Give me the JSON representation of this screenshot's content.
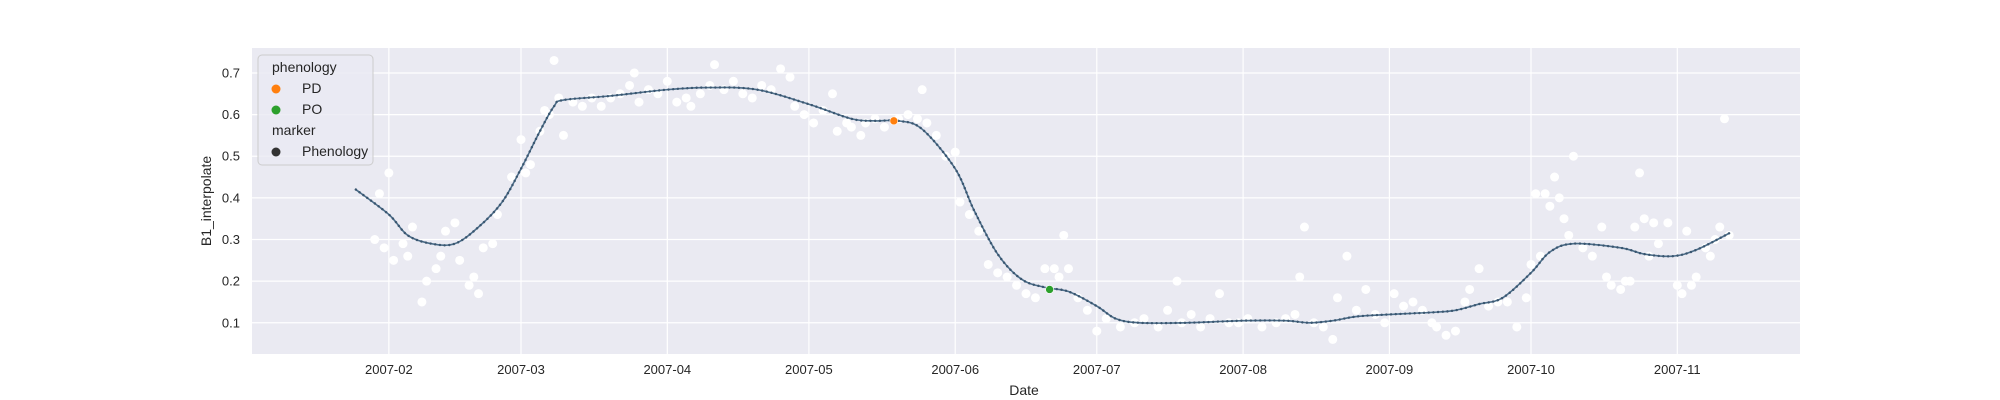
{
  "chart_data": {
    "type": "scatter",
    "title": "",
    "xlabel": "Date",
    "ylabel": "B1_interpolate",
    "xlim": [
      "2007-01-03",
      "2007-11-27"
    ],
    "ylim": [
      0.025,
      0.76
    ],
    "grid": true,
    "legend_position": "top-left",
    "x_ticks": [
      "2007-02",
      "2007-03",
      "2007-04",
      "2007-05",
      "2007-06",
      "2007-07",
      "2007-08",
      "2007-09",
      "2007-10",
      "2007-11"
    ],
    "y_ticks": [
      0.1,
      0.2,
      0.3,
      0.4,
      0.5,
      0.6,
      0.7
    ],
    "y_tick_labels": [
      "0.1",
      "0.2",
      "0.3",
      "0.4",
      "0.5",
      "0.6",
      "0.7"
    ],
    "legend": {
      "title1": "phenology",
      "items1": [
        {
          "label": "PD",
          "color": "#ff7f0e"
        },
        {
          "label": "PO",
          "color": "#2ca02c"
        }
      ],
      "title2": "marker",
      "items2": [
        {
          "label": "Phenology",
          "color": "#333333"
        }
      ]
    },
    "interpolated_curve": {
      "color": "#4c6e8a",
      "dot_color": "#3a5670",
      "points": [
        [
          "2007-01-25",
          0.42
        ],
        [
          "2007-02-01",
          0.36
        ],
        [
          "2007-02-05",
          0.31
        ],
        [
          "2007-02-10",
          0.29
        ],
        [
          "2007-02-15",
          0.29
        ],
        [
          "2007-02-20",
          0.33
        ],
        [
          "2007-02-25",
          0.39
        ],
        [
          "2007-03-01",
          0.47
        ],
        [
          "2007-03-05",
          0.56
        ],
        [
          "2007-03-08",
          0.62
        ],
        [
          "2007-03-10",
          0.635
        ],
        [
          "2007-03-20",
          0.645
        ],
        [
          "2007-04-01",
          0.66
        ],
        [
          "2007-04-10",
          0.665
        ],
        [
          "2007-04-20",
          0.66
        ],
        [
          "2007-05-01",
          0.625
        ],
        [
          "2007-05-10",
          0.59
        ],
        [
          "2007-05-15",
          0.585
        ],
        [
          "2007-05-20",
          0.585
        ],
        [
          "2007-05-25",
          0.565
        ],
        [
          "2007-06-01",
          0.47
        ],
        [
          "2007-06-05",
          0.37
        ],
        [
          "2007-06-10",
          0.265
        ],
        [
          "2007-06-15",
          0.205
        ],
        [
          "2007-06-20",
          0.185
        ],
        [
          "2007-06-25",
          0.175
        ],
        [
          "2007-07-01",
          0.14
        ],
        [
          "2007-07-05",
          0.11
        ],
        [
          "2007-07-10",
          0.1
        ],
        [
          "2007-07-20",
          0.1
        ],
        [
          "2007-08-01",
          0.105
        ],
        [
          "2007-08-10",
          0.105
        ],
        [
          "2007-08-15",
          0.1
        ],
        [
          "2007-08-20",
          0.105
        ],
        [
          "2007-08-25",
          0.115
        ],
        [
          "2007-09-01",
          0.12
        ],
        [
          "2007-09-10",
          0.125
        ],
        [
          "2007-09-15",
          0.13
        ],
        [
          "2007-09-20",
          0.145
        ],
        [
          "2007-09-25",
          0.16
        ],
        [
          "2007-10-01",
          0.22
        ],
        [
          "2007-10-05",
          0.27
        ],
        [
          "2007-10-10",
          0.29
        ],
        [
          "2007-10-20",
          0.28
        ],
        [
          "2007-10-25",
          0.265
        ],
        [
          "2007-10-31",
          0.26
        ],
        [
          "2007-11-05",
          0.275
        ],
        [
          "2007-11-12",
          0.315
        ]
      ]
    },
    "phenology_points": [
      {
        "label": "PD",
        "date": "2007-05-19",
        "value": 0.585,
        "color": "#ff7f0e"
      },
      {
        "label": "PO",
        "date": "2007-06-21",
        "value": 0.18,
        "color": "#2ca02c"
      }
    ],
    "observations": {
      "color": "#ffffff",
      "points": [
        [
          "2007-01-29",
          0.3
        ],
        [
          "2007-01-30",
          0.41
        ],
        [
          "2007-01-31",
          0.28
        ],
        [
          "2007-02-01",
          0.46
        ],
        [
          "2007-02-02",
          0.25
        ],
        [
          "2007-02-04",
          0.29
        ],
        [
          "2007-02-05",
          0.26
        ],
        [
          "2007-02-06",
          0.33
        ],
        [
          "2007-02-08",
          0.15
        ],
        [
          "2007-02-09",
          0.2
        ],
        [
          "2007-02-11",
          0.23
        ],
        [
          "2007-02-12",
          0.26
        ],
        [
          "2007-02-13",
          0.32
        ],
        [
          "2007-02-15",
          0.34
        ],
        [
          "2007-02-16",
          0.25
        ],
        [
          "2007-02-18",
          0.19
        ],
        [
          "2007-02-19",
          0.21
        ],
        [
          "2007-02-20",
          0.17
        ],
        [
          "2007-02-21",
          0.28
        ],
        [
          "2007-02-23",
          0.29
        ],
        [
          "2007-02-24",
          0.36
        ],
        [
          "2007-02-27",
          0.45
        ],
        [
          "2007-03-01",
          0.54
        ],
        [
          "2007-03-02",
          0.46
        ],
        [
          "2007-03-03",
          0.48
        ],
        [
          "2007-03-05",
          0.56
        ],
        [
          "2007-03-06",
          0.61
        ],
        [
          "2007-03-07",
          0.6
        ],
        [
          "2007-03-08",
          0.73
        ],
        [
          "2007-03-09",
          0.64
        ],
        [
          "2007-03-10",
          0.55
        ],
        [
          "2007-03-12",
          0.63
        ],
        [
          "2007-03-14",
          0.62
        ],
        [
          "2007-03-16",
          0.64
        ],
        [
          "2007-03-18",
          0.62
        ],
        [
          "2007-03-20",
          0.64
        ],
        [
          "2007-03-22",
          0.65
        ],
        [
          "2007-03-24",
          0.67
        ],
        [
          "2007-03-25",
          0.7
        ],
        [
          "2007-03-26",
          0.63
        ],
        [
          "2007-03-28",
          0.66
        ],
        [
          "2007-03-30",
          0.65
        ],
        [
          "2007-04-01",
          0.68
        ],
        [
          "2007-04-03",
          0.63
        ],
        [
          "2007-04-05",
          0.64
        ],
        [
          "2007-04-06",
          0.62
        ],
        [
          "2007-04-08",
          0.65
        ],
        [
          "2007-04-10",
          0.67
        ],
        [
          "2007-04-11",
          0.72
        ],
        [
          "2007-04-13",
          0.66
        ],
        [
          "2007-04-15",
          0.68
        ],
        [
          "2007-04-17",
          0.65
        ],
        [
          "2007-04-19",
          0.64
        ],
        [
          "2007-04-21",
          0.67
        ],
        [
          "2007-04-23",
          0.66
        ],
        [
          "2007-04-25",
          0.71
        ],
        [
          "2007-04-27",
          0.69
        ],
        [
          "2007-04-28",
          0.62
        ],
        [
          "2007-04-30",
          0.6
        ],
        [
          "2007-05-02",
          0.58
        ],
        [
          "2007-05-04",
          0.61
        ],
        [
          "2007-05-06",
          0.65
        ],
        [
          "2007-05-07",
          0.56
        ],
        [
          "2007-05-09",
          0.58
        ],
        [
          "2007-05-10",
          0.57
        ],
        [
          "2007-05-12",
          0.55
        ],
        [
          "2007-05-13",
          0.58
        ],
        [
          "2007-05-15",
          0.59
        ],
        [
          "2007-05-17",
          0.57
        ],
        [
          "2007-05-20",
          0.59
        ],
        [
          "2007-05-22",
          0.6
        ],
        [
          "2007-05-24",
          0.59
        ],
        [
          "2007-05-25",
          0.66
        ],
        [
          "2007-05-26",
          0.58
        ],
        [
          "2007-05-28",
          0.55
        ],
        [
          "2007-05-30",
          0.5
        ],
        [
          "2007-06-01",
          0.51
        ],
        [
          "2007-06-02",
          0.39
        ],
        [
          "2007-06-04",
          0.36
        ],
        [
          "2007-06-06",
          0.32
        ],
        [
          "2007-06-08",
          0.24
        ],
        [
          "2007-06-10",
          0.22
        ],
        [
          "2007-06-12",
          0.21
        ],
        [
          "2007-06-14",
          0.19
        ],
        [
          "2007-06-16",
          0.17
        ],
        [
          "2007-06-18",
          0.16
        ],
        [
          "2007-06-20",
          0.23
        ],
        [
          "2007-06-22",
          0.23
        ],
        [
          "2007-06-23",
          0.21
        ],
        [
          "2007-06-24",
          0.31
        ],
        [
          "2007-06-25",
          0.23
        ],
        [
          "2007-06-27",
          0.16
        ],
        [
          "2007-06-29",
          0.13
        ],
        [
          "2007-07-01",
          0.08
        ],
        [
          "2007-07-03",
          0.11
        ],
        [
          "2007-07-06",
          0.09
        ],
        [
          "2007-07-09",
          0.1
        ],
        [
          "2007-07-11",
          0.11
        ],
        [
          "2007-07-14",
          0.09
        ],
        [
          "2007-07-16",
          0.13
        ],
        [
          "2007-07-18",
          0.2
        ],
        [
          "2007-07-19",
          0.1
        ],
        [
          "2007-07-21",
          0.12
        ],
        [
          "2007-07-23",
          0.09
        ],
        [
          "2007-07-25",
          0.11
        ],
        [
          "2007-07-27",
          0.17
        ],
        [
          "2007-07-29",
          0.1
        ],
        [
          "2007-07-31",
          0.1
        ],
        [
          "2007-08-02",
          0.11
        ],
        [
          "2007-08-05",
          0.09
        ],
        [
          "2007-08-08",
          0.1
        ],
        [
          "2007-08-10",
          0.11
        ],
        [
          "2007-08-12",
          0.12
        ],
        [
          "2007-08-13",
          0.21
        ],
        [
          "2007-08-14",
          0.33
        ],
        [
          "2007-08-16",
          0.1
        ],
        [
          "2007-08-18",
          0.09
        ],
        [
          "2007-08-20",
          0.06
        ],
        [
          "2007-08-21",
          0.16
        ],
        [
          "2007-08-23",
          0.26
        ],
        [
          "2007-08-25",
          0.13
        ],
        [
          "2007-08-27",
          0.18
        ],
        [
          "2007-08-29",
          0.12
        ],
        [
          "2007-08-31",
          0.1
        ],
        [
          "2007-09-02",
          0.17
        ],
        [
          "2007-09-04",
          0.14
        ],
        [
          "2007-09-06",
          0.15
        ],
        [
          "2007-09-08",
          0.13
        ],
        [
          "2007-09-10",
          0.1
        ],
        [
          "2007-09-11",
          0.09
        ],
        [
          "2007-09-13",
          0.07
        ],
        [
          "2007-09-15",
          0.08
        ],
        [
          "2007-09-17",
          0.15
        ],
        [
          "2007-09-18",
          0.18
        ],
        [
          "2007-09-20",
          0.23
        ],
        [
          "2007-09-22",
          0.14
        ],
        [
          "2007-09-24",
          0.15
        ],
        [
          "2007-09-26",
          0.15
        ],
        [
          "2007-09-28",
          0.09
        ],
        [
          "2007-09-30",
          0.16
        ],
        [
          "2007-10-01",
          0.24
        ],
        [
          "2007-10-02",
          0.41
        ],
        [
          "2007-10-03",
          0.26
        ],
        [
          "2007-10-04",
          0.41
        ],
        [
          "2007-10-05",
          0.38
        ],
        [
          "2007-10-06",
          0.45
        ],
        [
          "2007-10-07",
          0.4
        ],
        [
          "2007-10-08",
          0.35
        ],
        [
          "2007-10-09",
          0.31
        ],
        [
          "2007-10-10",
          0.5
        ],
        [
          "2007-10-12",
          0.28
        ],
        [
          "2007-10-14",
          0.26
        ],
        [
          "2007-10-16",
          0.33
        ],
        [
          "2007-10-17",
          0.21
        ],
        [
          "2007-10-18",
          0.19
        ],
        [
          "2007-10-20",
          0.18
        ],
        [
          "2007-10-21",
          0.2
        ],
        [
          "2007-10-22",
          0.2
        ],
        [
          "2007-10-23",
          0.33
        ],
        [
          "2007-10-24",
          0.46
        ],
        [
          "2007-10-25",
          0.35
        ],
        [
          "2007-10-26",
          0.26
        ],
        [
          "2007-10-27",
          0.34
        ],
        [
          "2007-10-28",
          0.29
        ],
        [
          "2007-10-30",
          0.34
        ],
        [
          "2007-11-01",
          0.19
        ],
        [
          "2007-11-02",
          0.17
        ],
        [
          "2007-11-03",
          0.32
        ],
        [
          "2007-11-04",
          0.19
        ],
        [
          "2007-11-05",
          0.21
        ],
        [
          "2007-11-07",
          0.28
        ],
        [
          "2007-11-08",
          0.26
        ],
        [
          "2007-11-09",
          0.3
        ],
        [
          "2007-11-10",
          0.33
        ],
        [
          "2007-11-11",
          0.59
        ],
        [
          "2007-11-12",
          0.31
        ]
      ]
    }
  }
}
